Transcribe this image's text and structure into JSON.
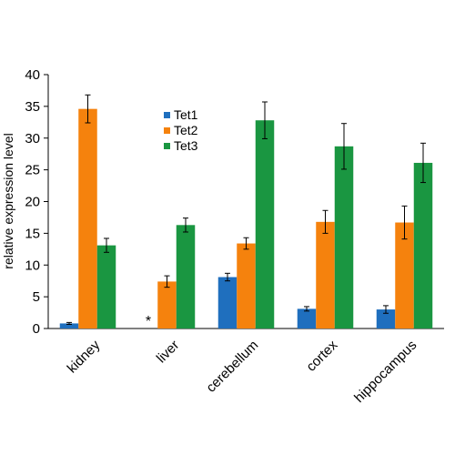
{
  "chart_data": {
    "type": "bar",
    "ylabel": "relative expression  level",
    "ylim": [
      0,
      40
    ],
    "yticks": [
      0,
      5,
      10,
      15,
      20,
      25,
      30,
      35,
      40
    ],
    "grid": false,
    "legend_position": "top-center",
    "categories": [
      "kidney",
      "liver",
      "cerebellum",
      "cortex",
      "hippocampus"
    ],
    "series": [
      {
        "name": "Tet1",
        "color": "#1f6fbe",
        "values": [
          0.8,
          null,
          8.1,
          3.1,
          3.0
        ],
        "errors": [
          0.15,
          null,
          0.6,
          0.35,
          0.6
        ]
      },
      {
        "name": "Tet2",
        "color": "#f5820d",
        "values": [
          34.6,
          7.4,
          13.4,
          16.8,
          16.7
        ],
        "errors": [
          2.2,
          0.9,
          0.9,
          1.8,
          2.6
        ]
      },
      {
        "name": "Tet3",
        "color": "#1a9641",
        "values": [
          13.1,
          16.3,
          32.8,
          28.7,
          26.1
        ],
        "errors": [
          1.1,
          1.1,
          2.9,
          3.6,
          3.1
        ]
      }
    ],
    "annotations": [
      {
        "text": "*",
        "category": "liver",
        "series": "Tet1"
      }
    ]
  }
}
